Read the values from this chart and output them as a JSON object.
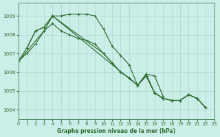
{
  "title": "Graphe pression niveau de la mer (hPa)",
  "bg_color": "#cceee8",
  "grid_color": "#aad4ce",
  "line_color": "#2d6e2d",
  "xlim": [
    0,
    23
  ],
  "ylim": [
    1003.5,
    1009.7
  ],
  "yticks": [
    1004,
    1005,
    1006,
    1007,
    1008,
    1009
  ],
  "xticks": [
    0,
    1,
    2,
    3,
    4,
    5,
    6,
    7,
    8,
    9,
    10,
    11,
    12,
    13,
    14,
    15,
    16,
    17,
    18,
    19,
    20,
    21,
    22,
    23
  ],
  "series": [
    {
      "x": [
        0,
        1,
        2,
        3,
        4,
        5,
        6,
        7,
        8,
        9,
        10,
        11,
        12,
        13,
        14,
        15,
        16,
        17,
        18,
        19,
        20,
        21,
        22
      ],
      "y": [
        1006.6,
        1007.3,
        1008.2,
        1008.4,
        1009.0,
        1009.0,
        1009.1,
        1009.1,
        1009.1,
        1009.0,
        1008.3,
        1007.4,
        1006.9,
        1006.4,
        1005.3,
        1005.8,
        1004.9,
        1004.6,
        1004.5,
        1004.5,
        1004.8,
        1004.6,
        1004.1
      ]
    },
    {
      "x": [
        0,
        1,
        2,
        3,
        4,
        5,
        6,
        7,
        8,
        9,
        10,
        11,
        12,
        13,
        14,
        15,
        16,
        17,
        18,
        19,
        20,
        21,
        22
      ],
      "y": [
        1006.6,
        1007.0,
        1007.5,
        1008.2,
        1008.6,
        1008.2,
        1008.0,
        1007.8,
        1007.7,
        1007.5,
        1007.0,
        1006.5,
        1006.0,
        1005.7,
        1005.3,
        1005.8,
        1004.9,
        1004.6,
        1004.5,
        1004.5,
        1004.8,
        1004.6,
        1004.1
      ]
    },
    {
      "x": [
        0,
        3,
        4,
        10,
        11,
        12,
        13,
        14,
        15,
        16,
        17,
        18,
        19,
        20,
        21,
        22
      ],
      "y": [
        1006.6,
        1008.2,
        1009.0,
        1007.0,
        1006.5,
        1006.0,
        1005.7,
        1005.3,
        1005.9,
        1004.9,
        1004.6,
        1004.5,
        1004.5,
        1004.8,
        1004.6,
        1004.1
      ]
    },
    {
      "x": [
        1,
        2,
        3,
        4,
        14,
        15,
        16,
        17
      ],
      "y": [
        1007.3,
        1008.2,
        1008.4,
        1009.0,
        1005.3,
        1005.9,
        1005.8,
        1004.7
      ]
    }
  ]
}
